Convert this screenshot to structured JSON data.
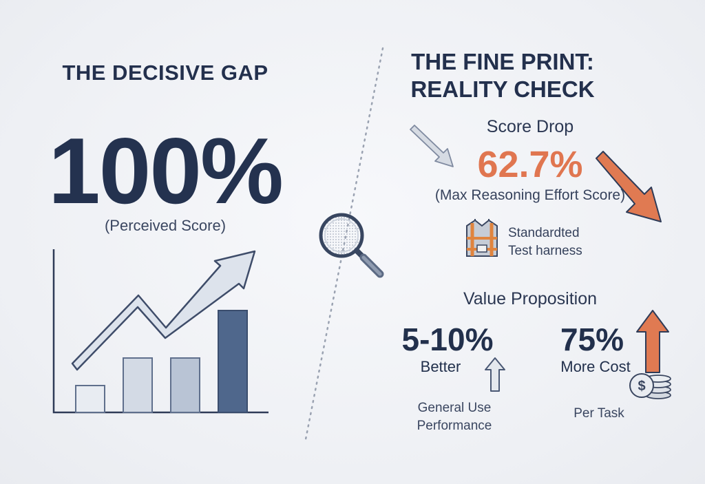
{
  "left": {
    "title": "THE DECISIVE GAP",
    "big_value": "100%",
    "subtitle": "(Perceived Score)",
    "icons": [
      "bar-chart-icon",
      "trend-up-arrow-icon"
    ]
  },
  "right": {
    "title_line1": "THE FINE PRINT:",
    "title_line2": "REALITY CHECK",
    "score_drop": {
      "label": "Score Drop",
      "value": "62.7%",
      "description": "(Max Reasoning Effort Score)"
    },
    "harness": {
      "icon": "safety-harness-icon",
      "line1": "Standardted",
      "line2": "Test harness"
    },
    "value_proposition": {
      "title": "Value Proposition",
      "metric1": {
        "value": "5-10%",
        "label": "Better",
        "desc_line1": "General Use",
        "desc_line2": "Performance",
        "icon": "arrow-up-outline-icon"
      },
      "metric2": {
        "value": "75%",
        "label": "More Cost",
        "desc": "Per Task",
        "icons": [
          "arrow-up-orange-icon",
          "coins-icon"
        ]
      }
    }
  },
  "decor": {
    "magnifier_icon": "magnifying-glass-icon",
    "divider": "dotted-divider"
  },
  "colors": {
    "navy": "#23304d",
    "orange": "#e07650",
    "bar_light": "#e6eaf1",
    "bar_mid": "#bac5d6",
    "bar_dark": "#4d6589"
  }
}
